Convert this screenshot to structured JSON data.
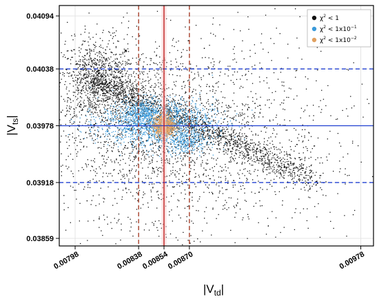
{
  "chart_data": {
    "type": "scatter",
    "x_axis": {
      "label": "|V",
      "label_sub": "td",
      "label_suffix": "|",
      "range": [
        0.00788,
        0.00986
      ],
      "ticks": [
        0.00798,
        0.00838,
        0.00854,
        0.0087,
        0.00978
      ],
      "tick_labels": [
        "0.00798",
        "0.00838",
        "0.00854",
        "0.00870",
        "0.00978"
      ]
    },
    "y_axis": {
      "label": "|V",
      "label_sub": "ts",
      "label_suffix": "|",
      "range": [
        0.03851,
        0.04105
      ],
      "ticks": [
        0.03859,
        0.03918,
        0.03978,
        0.04038,
        0.04094
      ],
      "tick_labels": [
        "0.03859",
        "0.03918",
        "0.03978",
        "0.04038",
        "0.04094"
      ]
    },
    "grid": true,
    "legend": {
      "placement": "top-right",
      "entries": [
        {
          "text": "χ² < 1",
          "base": "χ",
          "sup": "2",
          "tail": " < 1",
          "color": "#111111"
        },
        {
          "text": "χ² < 1x10⁻¹",
          "base": "χ",
          "sup": "2",
          "tail": " < 1x10",
          "tail_sup": "−1",
          "color": "#3a9ad9"
        },
        {
          "text": "χ² < 1x10⁻²",
          "base": "χ",
          "sup": "2",
          "tail": " < 1x10",
          "tail_sup": "−2",
          "color": "#e0a060"
        }
      ]
    },
    "reference_lines": {
      "horizontal_dashed": {
        "values": [
          0.04038,
          0.03918
        ],
        "color": "#1f3fd0"
      },
      "horizontal_solid": {
        "value": 0.03978,
        "color": "#1f3fd0"
      },
      "vertical_dashed": {
        "values": [
          0.00838,
          0.0087
        ],
        "color": "#a0301a"
      },
      "vertical_solid": {
        "value": 0.00854,
        "color": "#c02020",
        "band": [
          0.008525,
          0.008555
        ],
        "band_color": "#f6c8c8"
      }
    },
    "series": [
      {
        "color": "#111111",
        "clusters": [
          {
            "cx": 0.00812,
            "cy": 0.04025,
            "sx": 0.00012,
            "sy": 0.00022,
            "n": 900
          },
          {
            "cx": 0.00845,
            "cy": 0.03975,
            "sx": 0.00035,
            "sy": 0.00045,
            "n": 1500
          },
          {
            "cx": 0.00885,
            "cy": 0.0396,
            "sx": 0.0005,
            "sy": 0.0006,
            "n": 1100
          }
        ],
        "band": {
          "from": [
            0.00805,
            0.0403
          ],
          "to": [
            0.0095,
            0.0392
          ],
          "spread": 7e-05,
          "n": 1400
        }
      },
      {
        "color": "#3a9ad9",
        "clusters": [
          {
            "cx": 0.0085,
            "cy": 0.0398,
            "sx": 0.00018,
            "sy": 0.00012,
            "n": 1500
          },
          {
            "cx": 0.0084,
            "cy": 0.03993,
            "sx": 5e-05,
            "sy": 6e-05,
            "n": 250
          },
          {
            "cx": 0.00868,
            "cy": 0.0396,
            "sx": 6e-05,
            "sy": 6e-05,
            "n": 200
          }
        ]
      },
      {
        "color": "#e0a060",
        "clusters": [
          {
            "cx": 0.00854,
            "cy": 0.03978,
            "sx": 3.5e-05,
            "sy": 6e-05,
            "n": 700
          }
        ]
      }
    ]
  }
}
